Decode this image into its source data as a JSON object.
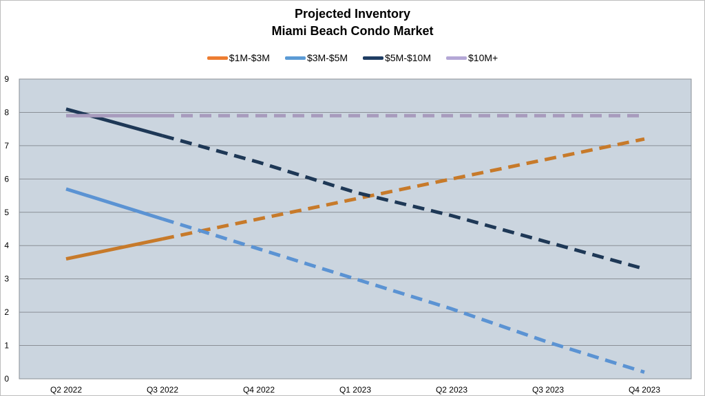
{
  "chart_data": {
    "type": "line",
    "title_lines": [
      "Projected Inventory",
      "Miami Beach Condo Market"
    ],
    "categories": [
      "Q2 2022",
      "Q3 2022",
      "Q4 2022",
      "Q1 2023",
      "Q2 2023",
      "Q3 2023",
      "Q4 2023"
    ],
    "ylim": [
      0,
      9
    ],
    "yticks": [
      "0",
      "1",
      "2",
      "3",
      "4",
      "5",
      "6",
      "7",
      "8",
      "9"
    ],
    "grid": true,
    "legend_position": "top-center",
    "plot_background": "#cbd5df",
    "series": [
      {
        "name": "$1M-$3M",
        "color": "#c77a2a",
        "legend_color": "#ed7d31",
        "values": [
          3.6,
          4.2,
          4.8,
          5.4,
          6.0,
          6.6,
          7.2
        ],
        "solid_until_index": 1
      },
      {
        "name": "$3M-$5M",
        "color": "#5b93d3",
        "legend_color": "#5b9bd5",
        "values": [
          5.7,
          4.8,
          3.9,
          3.0,
          2.1,
          1.1,
          0.2
        ],
        "solid_until_index": 1
      },
      {
        "name": "$5M-$10M",
        "color": "#1e3856",
        "legend_color": "#1f3d63",
        "values": [
          8.1,
          7.3,
          6.5,
          5.6,
          4.9,
          4.1,
          3.3
        ],
        "solid_until_index": 1
      },
      {
        "name": "$10M+",
        "color": "#a89bbd",
        "legend_color": "#b4a7d6",
        "values": [
          7.9,
          7.9,
          7.9,
          7.9,
          7.9,
          7.9,
          7.9
        ],
        "solid_until_index": 1
      }
    ]
  }
}
